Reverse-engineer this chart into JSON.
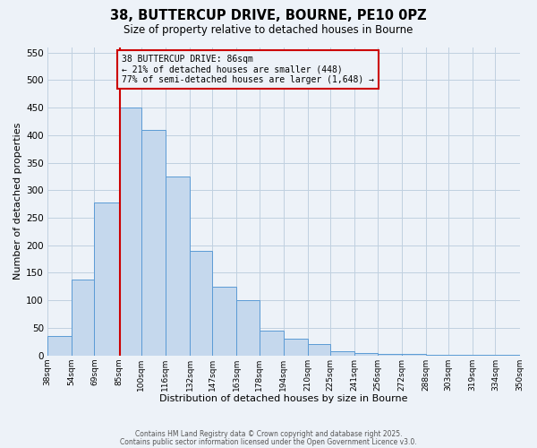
{
  "title": "38, BUTTERCUP DRIVE, BOURNE, PE10 0PZ",
  "subtitle": "Size of property relative to detached houses in Bourne",
  "xlabel": "Distribution of detached houses by size in Bourne",
  "ylabel": "Number of detached properties",
  "bin_labels": [
    "38sqm",
    "54sqm",
    "69sqm",
    "85sqm",
    "100sqm",
    "116sqm",
    "132sqm",
    "147sqm",
    "163sqm",
    "178sqm",
    "194sqm",
    "210sqm",
    "225sqm",
    "241sqm",
    "256sqm",
    "272sqm",
    "288sqm",
    "303sqm",
    "319sqm",
    "334sqm",
    "350sqm"
  ],
  "bar_heights": [
    35,
    137,
    277,
    450,
    410,
    325,
    190,
    125,
    100,
    45,
    30,
    20,
    8,
    5,
    3,
    2,
    1,
    1,
    1,
    1
  ],
  "bin_edges": [
    38,
    54,
    69,
    85,
    100,
    116,
    132,
    147,
    163,
    178,
    194,
    210,
    225,
    241,
    256,
    272,
    288,
    303,
    319,
    334,
    350
  ],
  "bar_color": "#c5d8ed",
  "bar_edge_color": "#5b9bd5",
  "property_line_x": 86,
  "property_line_color": "#cc0000",
  "annotation_line1": "38 BUTTERCUP DRIVE: 86sqm",
  "annotation_line2": "← 21% of detached houses are smaller (448)",
  "annotation_line3": "77% of semi-detached houses are larger (1,648) →",
  "annotation_box_color": "#cc0000",
  "ylim": [
    0,
    560
  ],
  "yticks": [
    0,
    50,
    100,
    150,
    200,
    250,
    300,
    350,
    400,
    450,
    500,
    550
  ],
  "grid_color": "#c0d0e0",
  "bg_color": "#edf2f8",
  "footer1": "Contains HM Land Registry data © Crown copyright and database right 2025.",
  "footer2": "Contains public sector information licensed under the Open Government Licence v3.0."
}
